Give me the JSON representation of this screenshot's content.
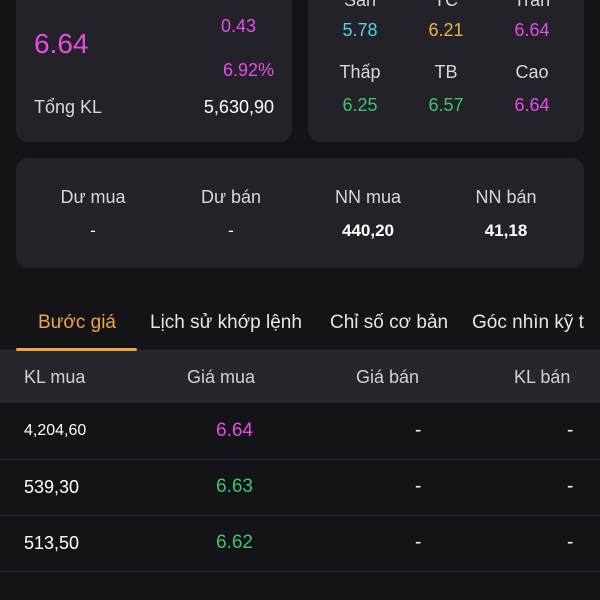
{
  "price_card": {
    "price": "6.64",
    "change": "0.43",
    "change_pct": "6.92%",
    "volume_label": "Tổng KL",
    "volume_value": "5,630,90",
    "colors": {
      "up": "#e84ce6"
    }
  },
  "ref_card": {
    "items": [
      {
        "label": "Sàn",
        "value": "5.78",
        "color": "cyan"
      },
      {
        "label": "TC",
        "value": "6.21",
        "color": "yellow"
      },
      {
        "label": "Trần",
        "value": "6.64",
        "color": "magenta"
      },
      {
        "label": "Thấp",
        "value": "6.25",
        "color": "green"
      },
      {
        "label": "TB",
        "value": "6.57",
        "color": "green"
      },
      {
        "label": "Cao",
        "value": "6.64",
        "color": "magenta"
      }
    ]
  },
  "foreign_card": {
    "items": [
      {
        "label": "Dư mua",
        "value": "-"
      },
      {
        "label": "Dư bán",
        "value": "-"
      },
      {
        "label": "NN mua",
        "value": "440,20"
      },
      {
        "label": "NN bán",
        "value": "41,18"
      }
    ]
  },
  "tabs": [
    {
      "label": "Bước giá",
      "active": true
    },
    {
      "label": "Lịch sử khớp lệnh",
      "active": false
    },
    {
      "label": "Chỉ số cơ bản",
      "active": false
    },
    {
      "label": "Góc nhìn kỹ t",
      "active": false
    }
  ],
  "table": {
    "headers": [
      "KL mua",
      "Giá mua",
      "Giá bán",
      "KL bán"
    ],
    "rows": [
      {
        "bid_vol": "4,204,60",
        "bid_price": "6.64",
        "bid_color": "magenta",
        "ask_price": "-",
        "ask_vol": "-"
      },
      {
        "bid_vol": "539,30",
        "bid_price": "6.63",
        "bid_color": "green",
        "ask_price": "-",
        "ask_vol": "-"
      },
      {
        "bid_vol": "513,50",
        "bid_price": "6.62",
        "bid_color": "green",
        "ask_price": "-",
        "ask_vol": "-"
      }
    ]
  },
  "colors": {
    "background": "#141418",
    "card": "#222228",
    "accent": "#f0a63c",
    "magenta": "#e84ce6",
    "green": "#3fc66a",
    "cyan": "#4fd3e8",
    "yellow": "#f0b43c"
  }
}
